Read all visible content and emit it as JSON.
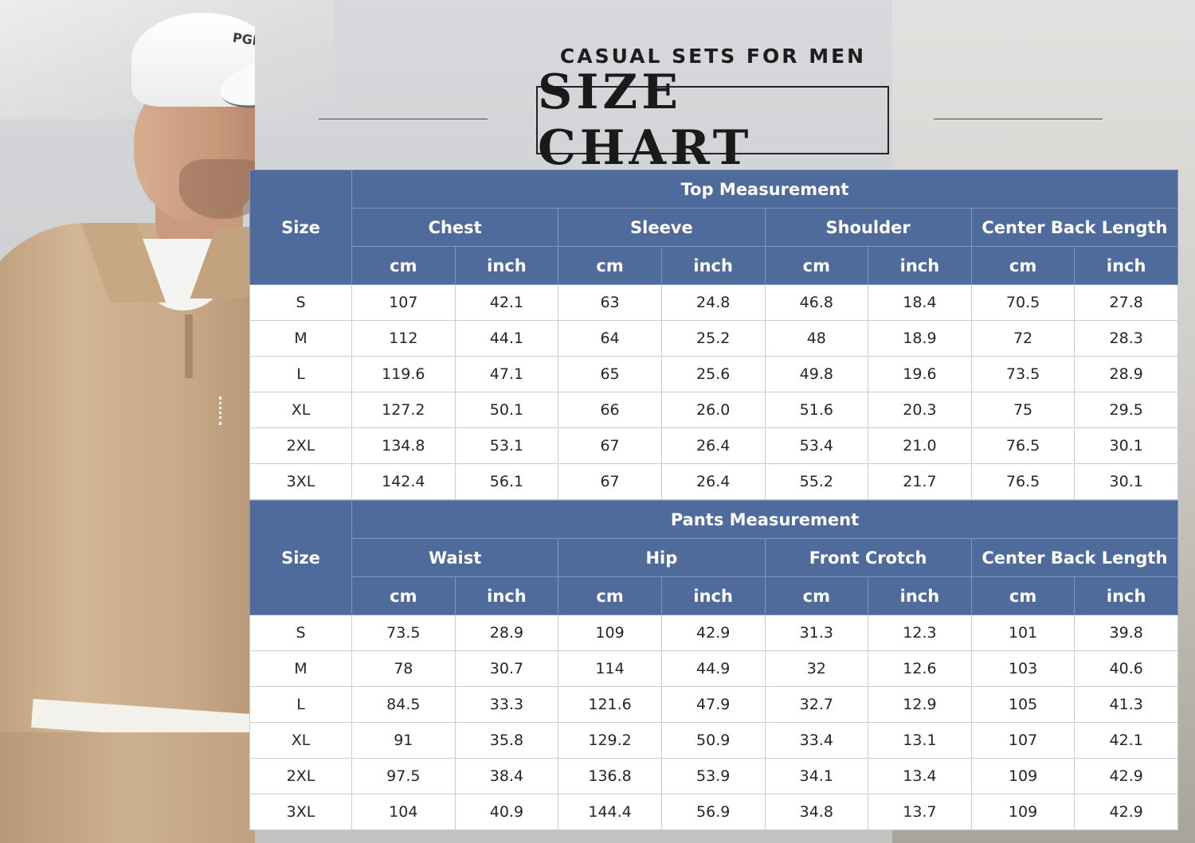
{
  "header": {
    "subtitle": "CASUAL SETS FOR MEN",
    "title": "SIZE CHART"
  },
  "photo": {
    "cap_logo": "PGR"
  },
  "top_table": {
    "size_label": "Size",
    "group_title": "Top Measurement",
    "columns": [
      "Chest",
      "Sleeve",
      "Shoulder",
      "Center Back Length"
    ],
    "units": [
      "cm",
      "inch",
      "cm",
      "inch",
      "cm",
      "inch",
      "cm",
      "inch"
    ],
    "rows": [
      [
        "S",
        "107",
        "42.1",
        "63",
        "24.8",
        "46.8",
        "18.4",
        "70.5",
        "27.8"
      ],
      [
        "M",
        "112",
        "44.1",
        "64",
        "25.2",
        "48",
        "18.9",
        "72",
        "28.3"
      ],
      [
        "L",
        "119.6",
        "47.1",
        "65",
        "25.6",
        "49.8",
        "19.6",
        "73.5",
        "28.9"
      ],
      [
        "XL",
        "127.2",
        "50.1",
        "66",
        "26.0",
        "51.6",
        "20.3",
        "75",
        "29.5"
      ],
      [
        "2XL",
        "134.8",
        "53.1",
        "67",
        "26.4",
        "53.4",
        "21.0",
        "76.5",
        "30.1"
      ],
      [
        "3XL",
        "142.4",
        "56.1",
        "67",
        "26.4",
        "55.2",
        "21.7",
        "76.5",
        "30.1"
      ]
    ]
  },
  "pants_table": {
    "size_label": "Size",
    "group_title": "Pants Measurement",
    "columns": [
      "Waist",
      "Hip",
      "Front Crotch",
      "Center Back Length"
    ],
    "units": [
      "cm",
      "inch",
      "cm",
      "inch",
      "cm",
      "inch",
      "cm",
      "inch"
    ],
    "rows": [
      [
        "S",
        "73.5",
        "28.9",
        "109",
        "42.9",
        "31.3",
        "12.3",
        "101",
        "39.8"
      ],
      [
        "M",
        "78",
        "30.7",
        "114",
        "44.9",
        "32",
        "12.6",
        "103",
        "40.6"
      ],
      [
        "L",
        "84.5",
        "33.3",
        "121.6",
        "47.9",
        "32.7",
        "12.9",
        "105",
        "41.3"
      ],
      [
        "XL",
        "91",
        "35.8",
        "129.2",
        "50.9",
        "33.4",
        "13.1",
        "107",
        "42.1"
      ],
      [
        "2XL",
        "97.5",
        "38.4",
        "136.8",
        "53.9",
        "34.1",
        "13.4",
        "109",
        "42.9"
      ],
      [
        "3XL",
        "104",
        "40.9",
        "144.4",
        "56.9",
        "34.8",
        "13.7",
        "109",
        "42.9"
      ]
    ]
  }
}
